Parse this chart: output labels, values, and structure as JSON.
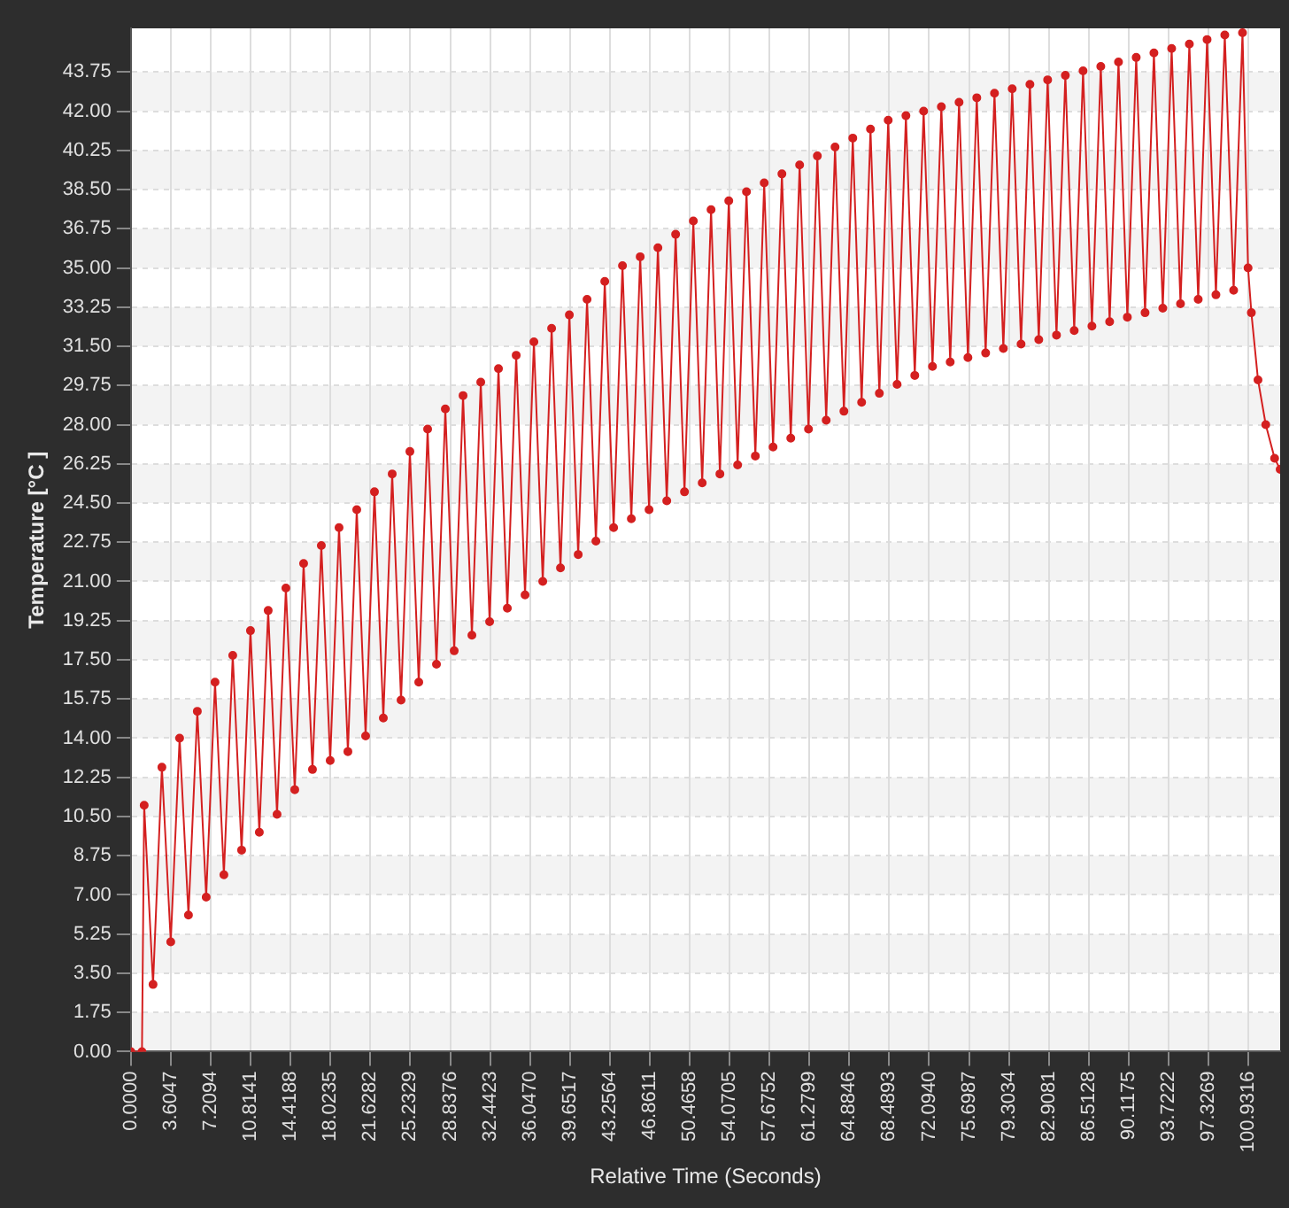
{
  "chart_data": {
    "type": "line",
    "xlabel": "Relative Time (Seconds)",
    "ylabel": "Temperature [°C ]",
    "grid": true,
    "legend": false,
    "marker": "circle",
    "line_style": "solid",
    "xlim": [
      0,
      103.8
    ],
    "ylim": [
      0,
      45.7
    ],
    "xticks": [
      {
        "value": 0,
        "label": "0.0000"
      },
      {
        "value": 3.6047,
        "label": "3.6047"
      },
      {
        "value": 7.2094,
        "label": "7.2094"
      },
      {
        "value": 10.8141,
        "label": "10.8141"
      },
      {
        "value": 14.4188,
        "label": "14.4188"
      },
      {
        "value": 18.0235,
        "label": "18.0235"
      },
      {
        "value": 21.6282,
        "label": "21.6282"
      },
      {
        "value": 25.2329,
        "label": "25.2329"
      },
      {
        "value": 28.8376,
        "label": "28.8376"
      },
      {
        "value": 32.4423,
        "label": "32.4423"
      },
      {
        "value": 36.047,
        "label": "36.0470"
      },
      {
        "value": 39.6517,
        "label": "39.6517"
      },
      {
        "value": 43.2564,
        "label": "43.2564"
      },
      {
        "value": 46.8611,
        "label": "46.8611"
      },
      {
        "value": 50.4658,
        "label": "50.4658"
      },
      {
        "value": 54.0705,
        "label": "54.0705"
      },
      {
        "value": 57.6752,
        "label": "57.6752"
      },
      {
        "value": 61.2799,
        "label": "61.2799"
      },
      {
        "value": 64.8846,
        "label": "64.8846"
      },
      {
        "value": 68.4893,
        "label": "68.4893"
      },
      {
        "value": 72.094,
        "label": "72.0940"
      },
      {
        "value": 75.6987,
        "label": "75.6987"
      },
      {
        "value": 79.3034,
        "label": "79.3034"
      },
      {
        "value": 82.9081,
        "label": "82.9081"
      },
      {
        "value": 86.5128,
        "label": "86.5128"
      },
      {
        "value": 90.1175,
        "label": "90.1175"
      },
      {
        "value": 93.7222,
        "label": "93.7222"
      },
      {
        "value": 97.3269,
        "label": "97.3269"
      },
      {
        "value": 100.9316,
        "label": "100.9316"
      }
    ],
    "yticks": [
      {
        "value": 0,
        "label": "0.00"
      },
      {
        "value": 1.75,
        "label": "1.75"
      },
      {
        "value": 3.5,
        "label": "3.50"
      },
      {
        "value": 5.25,
        "label": "5.25"
      },
      {
        "value": 7,
        "label": "7.00"
      },
      {
        "value": 8.75,
        "label": "8.75"
      },
      {
        "value": 10.5,
        "label": "10.50"
      },
      {
        "value": 12.25,
        "label": "12.25"
      },
      {
        "value": 14,
        "label": "14.00"
      },
      {
        "value": 15.75,
        "label": "15.75"
      },
      {
        "value": 17.5,
        "label": "17.50"
      },
      {
        "value": 19.25,
        "label": "19.25"
      },
      {
        "value": 21,
        "label": "21.00"
      },
      {
        "value": 22.75,
        "label": "22.75"
      },
      {
        "value": 24.5,
        "label": "24.50"
      },
      {
        "value": 26.25,
        "label": "26.25"
      },
      {
        "value": 28,
        "label": "28.00"
      },
      {
        "value": 29.75,
        "label": "29.75"
      },
      {
        "value": 31.5,
        "label": "31.50"
      },
      {
        "value": 33.25,
        "label": "33.25"
      },
      {
        "value": 35,
        "label": "35.00"
      },
      {
        "value": 36.75,
        "label": "36.75"
      },
      {
        "value": 38.5,
        "label": "38.50"
      },
      {
        "value": 40.25,
        "label": "40.25"
      },
      {
        "value": 42,
        "label": "42.00"
      },
      {
        "value": 43.75,
        "label": "43.75"
      }
    ],
    "series": [
      {
        "color": "#d42020",
        "x": [
          0,
          1.0,
          1.2,
          2.0,
          2.8,
          3.6,
          4.4,
          5.2,
          6.0,
          6.8,
          7.6,
          8.4,
          9.2,
          10.0,
          10.8,
          11.6,
          12.4,
          13.2,
          14.0,
          14.8,
          15.6,
          16.4,
          17.2,
          18.0,
          18.8,
          19.6,
          20.4,
          21.2,
          22.0,
          22.8,
          23.6,
          24.4,
          25.2,
          26.0,
          26.8,
          27.6,
          28.4,
          29.2,
          30.0,
          30.8,
          31.6,
          32.4,
          33.2,
          34.0,
          34.8,
          35.6,
          36.4,
          37.2,
          38.0,
          38.8,
          39.6,
          40.4,
          41.2,
          42.0,
          42.8,
          43.6,
          44.4,
          45.2,
          46.0,
          46.8,
          47.6,
          48.4,
          49.2,
          50.0,
          50.8,
          51.6,
          52.4,
          53.2,
          54.0,
          54.8,
          55.6,
          56.4,
          57.2,
          58.0,
          58.8,
          59.6,
          60.4,
          61.2,
          62.0,
          62.8,
          63.6,
          64.4,
          65.2,
          66.0,
          66.8,
          67.6,
          68.4,
          69.2,
          70.0,
          70.8,
          71.6,
          72.4,
          73.2,
          74.0,
          74.8,
          75.6,
          76.4,
          77.2,
          78.0,
          78.8,
          79.6,
          80.4,
          81.2,
          82.0,
          82.8,
          83.6,
          84.4,
          85.2,
          86.0,
          86.8,
          87.6,
          88.4,
          89.2,
          90.0,
          90.8,
          91.6,
          92.4,
          93.2,
          94.0,
          94.8,
          95.6,
          96.4,
          97.2,
          98.0,
          98.8,
          99.6,
          100.4,
          100.9,
          101.2,
          101.8,
          102.5,
          103.3,
          103.8
        ],
        "values": [
          0,
          0,
          11,
          3,
          12.7,
          4.9,
          14.0,
          6.1,
          15.2,
          6.9,
          16.5,
          7.9,
          17.7,
          9.0,
          18.8,
          9.8,
          19.7,
          10.6,
          20.7,
          11.7,
          21.8,
          12.6,
          22.6,
          13.0,
          23.4,
          13.4,
          24.2,
          14.1,
          25.0,
          14.9,
          25.8,
          15.7,
          26.8,
          16.5,
          27.8,
          17.3,
          28.7,
          17.9,
          29.3,
          18.6,
          29.9,
          19.2,
          30.5,
          19.8,
          31.1,
          20.4,
          31.7,
          21.0,
          32.3,
          21.6,
          32.9,
          22.2,
          33.6,
          22.8,
          34.4,
          23.4,
          35.1,
          23.8,
          35.5,
          24.2,
          35.9,
          24.6,
          36.5,
          25.0,
          37.1,
          25.4,
          37.6,
          25.8,
          38.0,
          26.2,
          38.4,
          26.6,
          38.8,
          27.0,
          39.2,
          27.4,
          39.6,
          27.8,
          40.0,
          28.2,
          40.4,
          28.6,
          40.8,
          29.0,
          41.2,
          29.4,
          41.6,
          29.8,
          41.8,
          30.2,
          42.0,
          30.6,
          42.2,
          30.8,
          42.4,
          31.0,
          42.6,
          31.2,
          42.8,
          31.4,
          43.0,
          31.6,
          43.2,
          31.8,
          43.4,
          32.0,
          43.6,
          32.2,
          43.8,
          32.4,
          44.0,
          32.6,
          44.2,
          32.8,
          44.4,
          33.0,
          44.6,
          33.2,
          44.8,
          33.4,
          45.0,
          33.6,
          45.2,
          33.8,
          45.4,
          34.0,
          45.5,
          35,
          33,
          30,
          28,
          26.5,
          26
        ]
      }
    ]
  }
}
